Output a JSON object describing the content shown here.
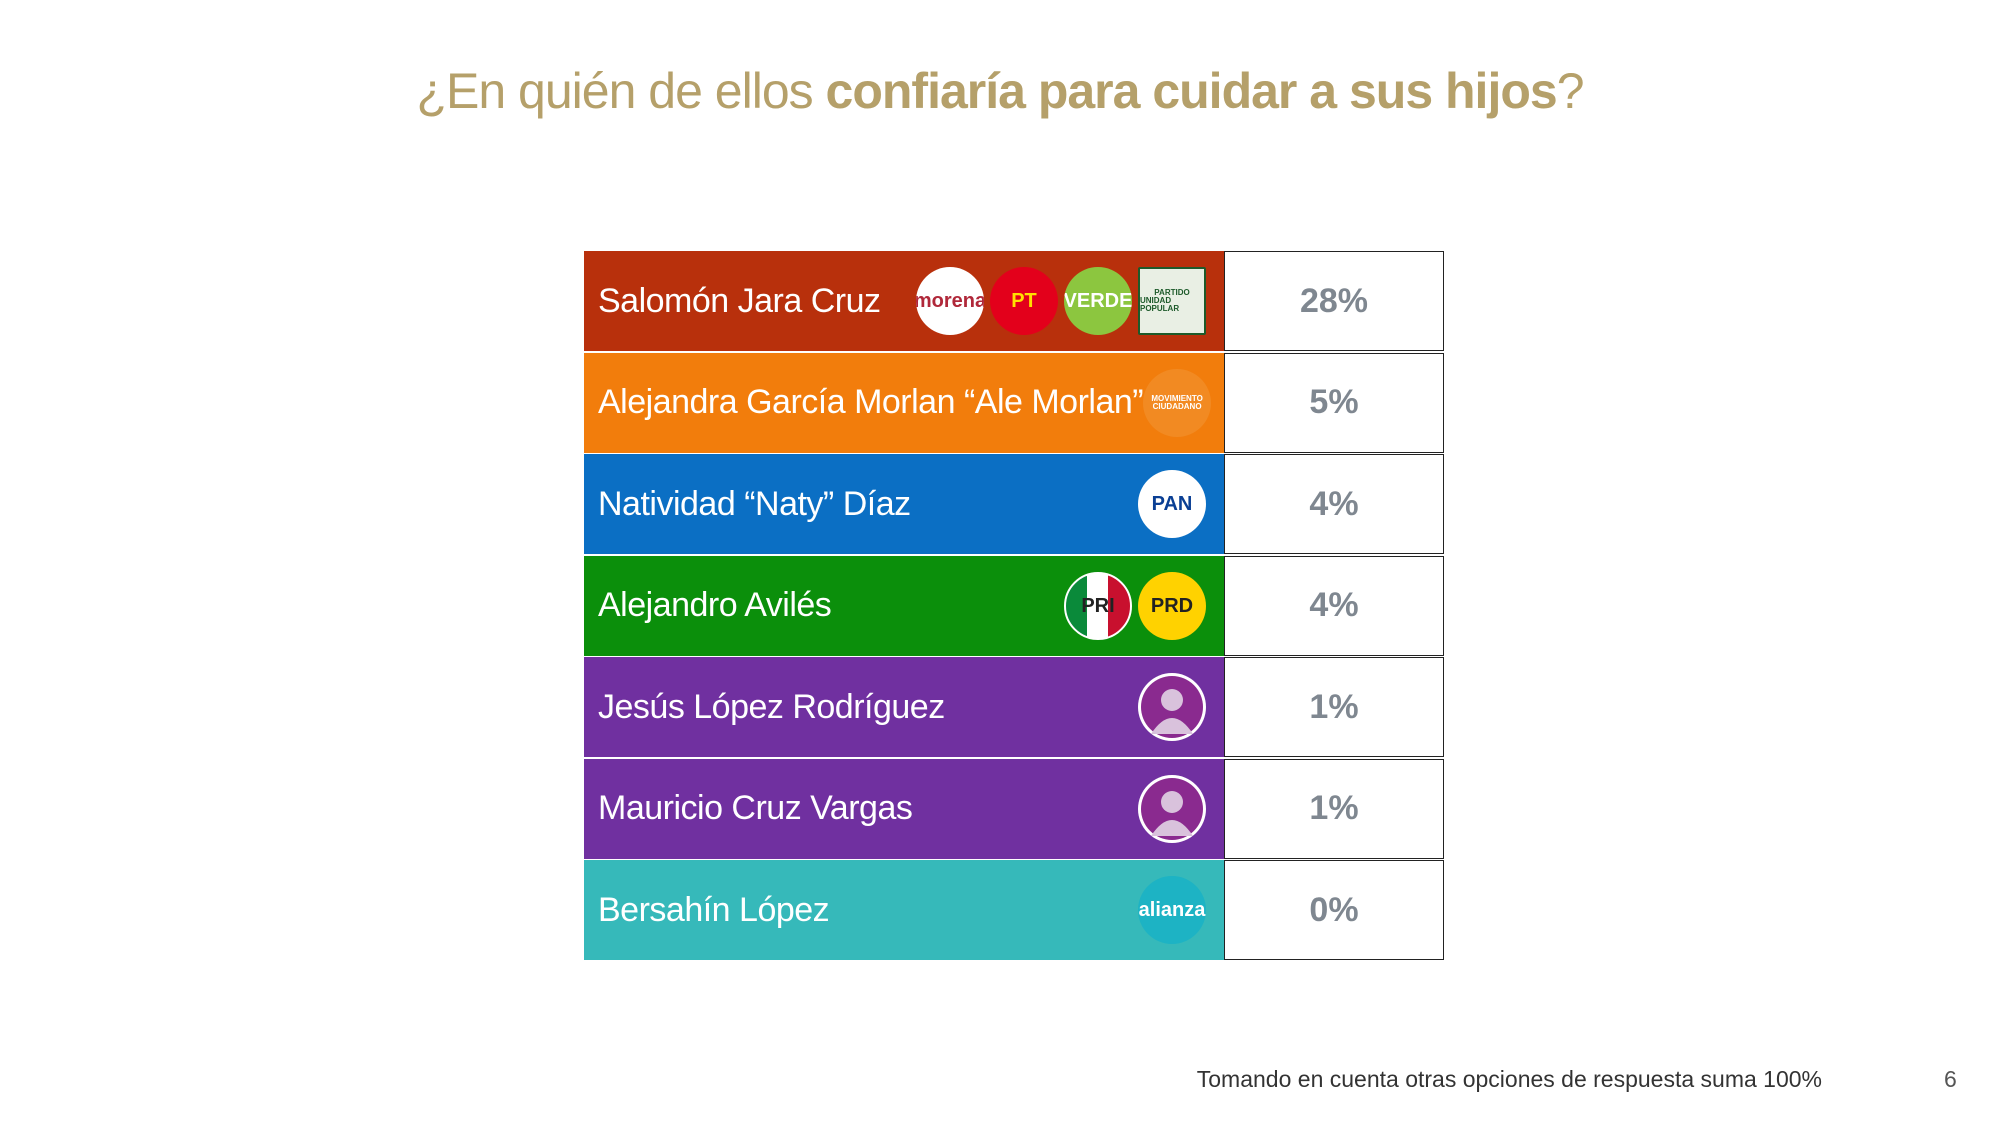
{
  "header": {
    "title_start": "¿En quién de ellos ",
    "title_bold": "confiaría para cuidar a sus hijos",
    "title_end": "?"
  },
  "table": {
    "rows": [
      {
        "name": "Salomón Jara Cruz",
        "value": "28%",
        "color": "#b8300c",
        "logos": [
          {
            "lines": [
              "morena"
            ],
            "shape": "circle",
            "bg": "#ffffff",
            "fg": "#b0283a"
          },
          {
            "lines": [
              "PT"
            ],
            "shape": "circle",
            "bg": "#e3001b",
            "fg": "#ffe000"
          },
          {
            "lines": [
              "VERDE"
            ],
            "shape": "circle",
            "bg": "#8cc63f",
            "fg": "#ffffff"
          },
          {
            "lines": [
              "PARTIDO",
              "UNIDAD POPULAR"
            ],
            "shape": "square",
            "bg": "#e9efe4",
            "fg": "#1d5a2a"
          }
        ]
      },
      {
        "name": "Alejandra García Morlan “Ale Morlan”",
        "value": "5%",
        "color": "#f27d0c",
        "logos": [
          {
            "lines": [
              "MOVIMIENTO",
              "CIUDADANO"
            ],
            "shape": "circle",
            "bg": "#f28a22",
            "fg": "#ffffff"
          }
        ]
      },
      {
        "name": "Natividad “Naty” Díaz",
        "value": "4%",
        "color": "#0b6fc4",
        "logos": [
          {
            "lines": [
              "PAN"
            ],
            "shape": "circle",
            "bg": "#ffffff",
            "fg": "#0a3f94"
          }
        ]
      },
      {
        "name": "Alejandro Avilés",
        "value": "4%",
        "color": "#0b8f0b",
        "logos": [
          {
            "lines": [
              "PRI"
            ],
            "shape": "tricolor",
            "bg": "#ffffff",
            "fg": "#c8102e"
          },
          {
            "lines": [
              "PRD"
            ],
            "shape": "circle",
            "bg": "#ffd200",
            "fg": "#222222"
          }
        ]
      },
      {
        "name": "Jesús López Rodríguez",
        "value": "1%",
        "color": "#7030a0",
        "avatar": true
      },
      {
        "name": "Mauricio Cruz Vargas",
        "value": "1%",
        "color": "#7030a0",
        "avatar": true
      },
      {
        "name": "Bersahín López",
        "value": "0%",
        "color": "#36b9ba",
        "logos": [
          {
            "lines": [
              "alianza"
            ],
            "shape": "circle",
            "bg": "#1db3c4",
            "fg": "#ffffff"
          }
        ]
      }
    ]
  },
  "footer": {
    "note": "Tomando en cuenta otras opciones de respuesta suma 100%",
    "page": "6"
  }
}
